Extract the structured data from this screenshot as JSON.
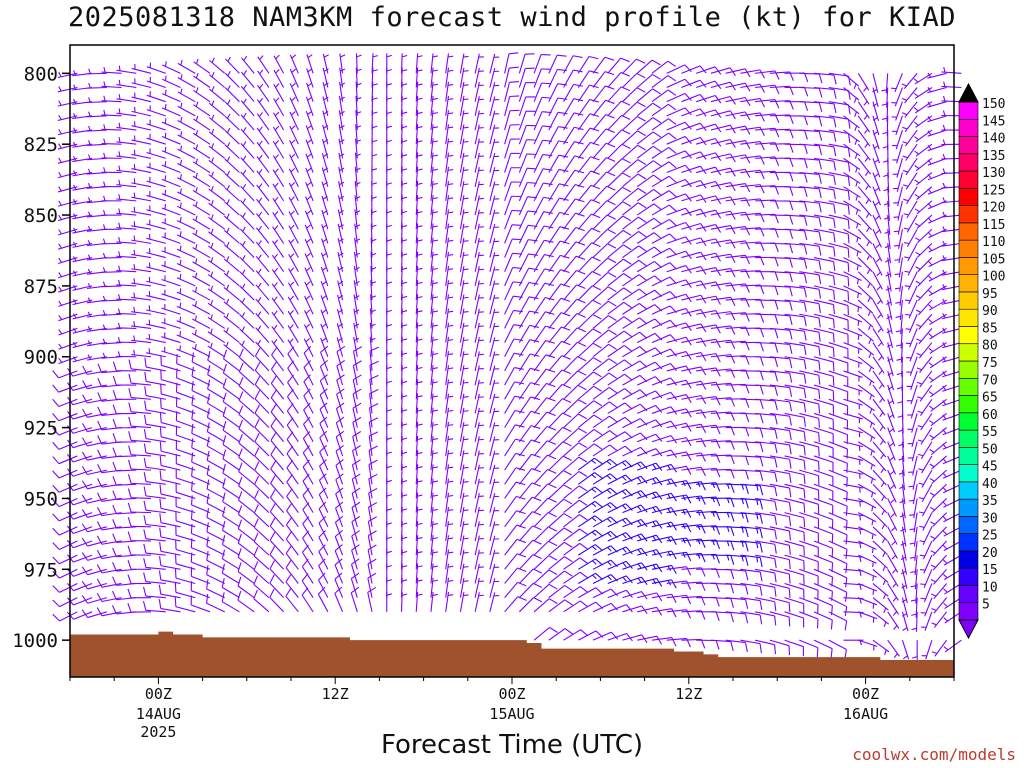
{
  "title": "2025081318 NAM3KM forecast wind profile (kt) for KIAD",
  "credit": "coolwx.com/models",
  "chart_data": {
    "type": "wind-barb-profile",
    "title": "2025081318 NAM3KM forecast wind profile (kt) for KIAD",
    "xlabel": "Forecast Time (UTC)",
    "ylabel": "",
    "ylim": [
      1013,
      790
    ],
    "y_ticks": [
      800,
      825,
      850,
      875,
      900,
      925,
      950,
      975,
      1000
    ],
    "x_ticks": [
      {
        "label": "00Z",
        "sub": [
          "14AUG",
          "2025"
        ],
        "hour": 6
      },
      {
        "label": "12Z",
        "sub": [],
        "hour": 18
      },
      {
        "label": "00Z",
        "sub": [
          "15AUG"
        ],
        "hour": 30
      },
      {
        "label": "12Z",
        "sub": [],
        "hour": 42
      },
      {
        "label": "00Z",
        "sub": [
          "16AUG"
        ],
        "hour": 54
      }
    ],
    "xlim": [
      0,
      60
    ],
    "colorbar": {
      "levels": [
        5,
        10,
        15,
        20,
        25,
        30,
        35,
        40,
        45,
        50,
        55,
        60,
        65,
        70,
        75,
        80,
        85,
        90,
        95,
        100,
        105,
        110,
        115,
        120,
        125,
        130,
        135,
        140,
        145,
        150
      ],
      "colors": [
        "#8000ff",
        "#6600ff",
        "#3300ff",
        "#0000e6",
        "#0033ff",
        "#0066ff",
        "#0099ff",
        "#00ccff",
        "#00ffcc",
        "#00ff99",
        "#00ff66",
        "#00ff33",
        "#33ff00",
        "#66ff00",
        "#99ff00",
        "#ccff00",
        "#ffff00",
        "#ffe600",
        "#ffcc00",
        "#ffb300",
        "#ff9900",
        "#ff8000",
        "#ff6600",
        "#ff3300",
        "#ff0000",
        "#ff0033",
        "#ff0066",
        "#ff0099",
        "#ff00cc",
        "#ff00ff"
      ]
    },
    "wind_levels": [
      1000,
      990,
      985,
      980,
      975,
      970,
      965,
      960,
      955,
      950,
      945,
      940,
      935,
      930,
      925,
      920,
      915,
      910,
      905,
      900,
      895,
      890,
      885,
      880,
      875,
      870,
      865,
      860,
      855,
      850,
      845,
      840,
      835,
      830,
      825,
      820,
      815,
      810,
      805,
      800
    ],
    "wind_sample": [
      {
        "hour": 0,
        "level": 850,
        "speed_kt": 5,
        "dir_deg": 250
      },
      {
        "hour": 12,
        "level": 850,
        "speed_kt": 7,
        "dir_deg": 330
      },
      {
        "hour": 24,
        "level": 850,
        "speed_kt": 6,
        "dir_deg": 10
      },
      {
        "hour": 36,
        "level": 950,
        "speed_kt": 17,
        "dir_deg": 60
      },
      {
        "hour": 48,
        "level": 850,
        "speed_kt": 8,
        "dir_deg": 80
      },
      {
        "hour": 60,
        "level": 800,
        "speed_kt": 5,
        "dir_deg": 300
      }
    ],
    "terrain_color": "#a0522d",
    "terrain_surface": [
      {
        "hour": 0,
        "pres": 998
      },
      {
        "hour": 5,
        "pres": 998
      },
      {
        "hour": 6,
        "pres": 997
      },
      {
        "hour": 7,
        "pres": 998
      },
      {
        "hour": 9,
        "pres": 999
      },
      {
        "hour": 17,
        "pres": 999
      },
      {
        "hour": 19,
        "pres": 1000
      },
      {
        "hour": 29,
        "pres": 1000
      },
      {
        "hour": 31,
        "pres": 1001
      },
      {
        "hour": 32,
        "pres": 1003
      },
      {
        "hour": 40,
        "pres": 1003
      },
      {
        "hour": 41,
        "pres": 1004
      },
      {
        "hour": 43,
        "pres": 1005
      },
      {
        "hour": 44,
        "pres": 1006
      },
      {
        "hour": 54,
        "pres": 1006
      },
      {
        "hour": 55,
        "pres": 1007
      },
      {
        "hour": 60,
        "pres": 1007
      }
    ]
  }
}
